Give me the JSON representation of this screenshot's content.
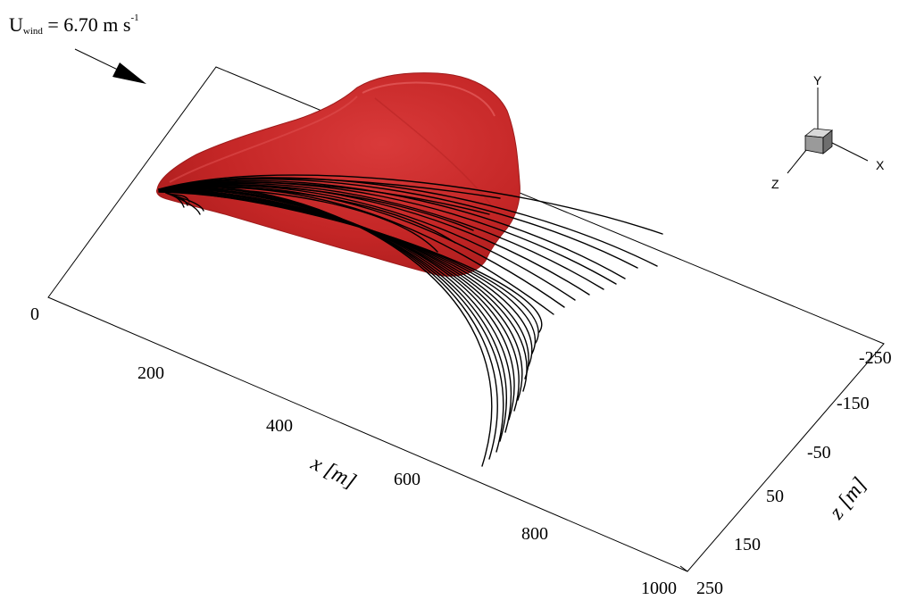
{
  "wind": {
    "symbol": "U",
    "subscript": "wind",
    "equals_value": " = 6.70 m s",
    "exponent": "-1"
  },
  "x_axis": {
    "label": "x [m]",
    "ticks": [
      {
        "label": "0",
        "value": 0
      },
      {
        "label": "200",
        "value": 200
      },
      {
        "label": "400",
        "value": 400
      },
      {
        "label": "600",
        "value": 600
      },
      {
        "label": "800",
        "value": 800
      },
      {
        "label": "1000",
        "value": 1000
      }
    ]
  },
  "z_axis": {
    "label": "z [m]",
    "ticks": [
      {
        "label": "-250",
        "value": -250
      },
      {
        "label": "-150",
        "value": -150
      },
      {
        "label": "-50",
        "value": -50
      },
      {
        "label": "50",
        "value": 50
      },
      {
        "label": "150",
        "value": 150
      },
      {
        "label": "250",
        "value": 250
      }
    ]
  },
  "orientation_triad": {
    "x": "X",
    "y": "Y",
    "z": "Z"
  },
  "colors": {
    "plume": "#cc2b2b",
    "plume_dark": "#a81c1c",
    "plume_light": "#e05454",
    "streamline": "#000000",
    "frame": "#000000"
  }
}
